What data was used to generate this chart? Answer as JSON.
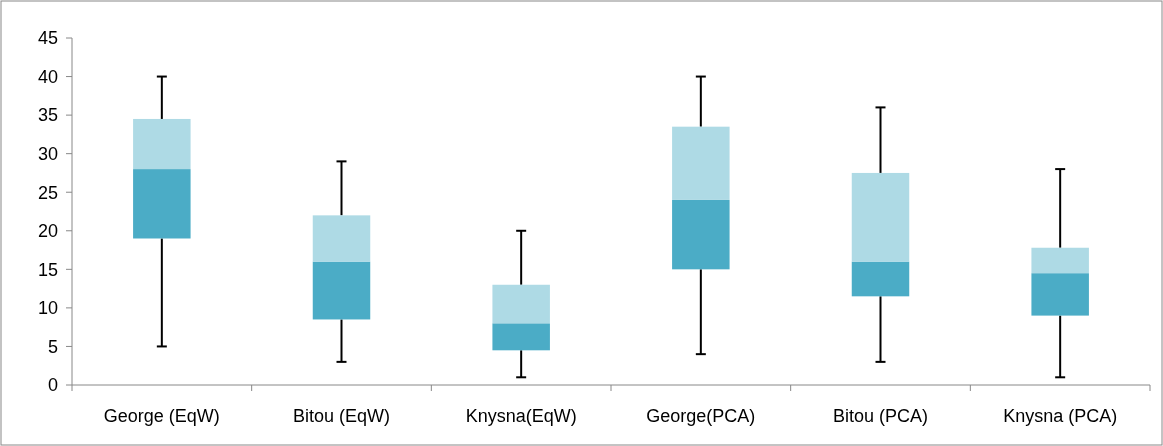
{
  "chart_data": {
    "type": "box",
    "categories": [
      "George (EqW)",
      "Bitou (EqW)",
      "Knysna(EqW)",
      "George(PCA)",
      "Bitou (PCA)",
      "Knysna (PCA)"
    ],
    "series": [
      {
        "color": "#4bacc6",
        "boxes": [
          {
            "low": 5,
            "q1": 19,
            "median": 28,
            "q3": 34.5,
            "high": 40
          },
          {
            "low": 3,
            "q1": 8.5,
            "median": 16,
            "q3": 22,
            "high": 29
          },
          {
            "low": 1,
            "q1": 4.5,
            "median": 8,
            "q3": 13,
            "high": 20
          },
          {
            "low": 4,
            "q1": 15,
            "median": 24,
            "q3": 33.5,
            "high": 40
          },
          {
            "low": 3,
            "q1": 11.5,
            "median": 16,
            "q3": 27.5,
            "high": 36
          },
          {
            "low": 1,
            "q1": 9,
            "median": 14.5,
            "q3": 17.8,
            "high": 28
          }
        ]
      }
    ],
    "ylim": [
      0,
      45
    ],
    "yticks": [
      0,
      5,
      10,
      15,
      20,
      25,
      30,
      35,
      40,
      45
    ],
    "grid": false
  }
}
